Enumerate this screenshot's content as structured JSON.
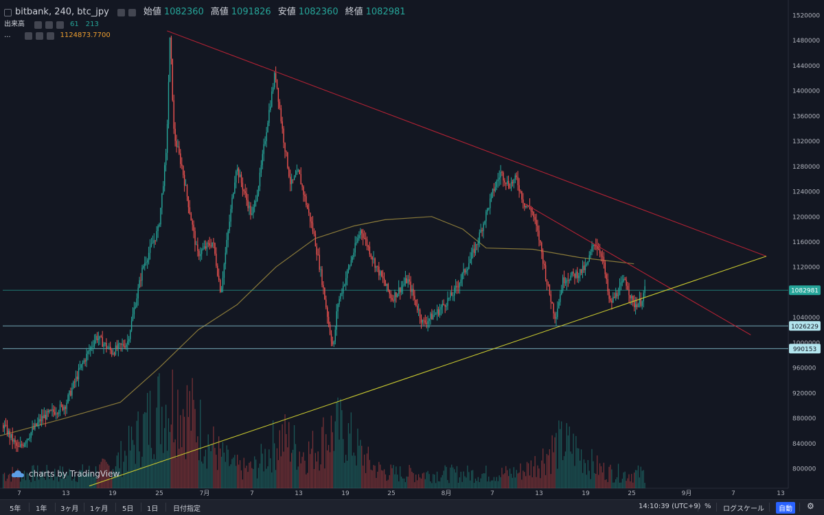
{
  "legend": {
    "symbol": "bitbank, 240, btc_jpy",
    "open_label": "始値",
    "open_value": "1082360",
    "high_label": "高値",
    "high_value": "1091826",
    "low_label": "安値",
    "low_value": "1082360",
    "close_label": "終値",
    "close_value": "1082981",
    "volume_label": "出来高",
    "volume_a": "61",
    "volume_b": "213",
    "ma_label": "...",
    "ma_value": "1124873.7700"
  },
  "watermark": "charts by TradingView",
  "bottom_bar": {
    "ranges": [
      "5年",
      "1年",
      "3ヶ月",
      "1ヶ月",
      "5日",
      "1日",
      "日付指定"
    ],
    "time": "14:10:39 (UTC+9)",
    "percent": "%",
    "log_scale": "ログスケール",
    "auto": "自動"
  },
  "colors": {
    "background": "#131722",
    "up": "#26a69a",
    "down": "#ef5350",
    "ma_line": "#8a7a3a",
    "resistance_line": "#b22234",
    "support_line": "#c8c830",
    "level_line": "#7fb8c8",
    "price_badge": "#26a69a",
    "level_badge": "#b3e5ee"
  },
  "chart_data": {
    "type": "candlestick",
    "y_ticks": [
      "1520000",
      "1480000",
      "1440000",
      "1400000",
      "1360000",
      "1320000",
      "1280000",
      "1240000",
      "1200000",
      "1160000",
      "1120000",
      "1080000",
      "1040000",
      "1000000",
      "960000",
      "920000",
      "880000",
      "840000",
      "800000"
    ],
    "x_ticks": [
      "7",
      "13",
      "19",
      "25",
      "7月",
      "7",
      "13",
      "19",
      "25",
      "8月",
      "7",
      "13",
      "19",
      "25",
      "9月",
      "7",
      "13"
    ],
    "ylim": [
      775000,
      1535000
    ],
    "price_keypoints": [
      [
        "6/1",
        850000
      ],
      [
        "6/3",
        845000
      ],
      [
        "6/5",
        870000
      ],
      [
        "6/7",
        830000
      ],
      [
        "6/10",
        880000
      ],
      [
        "6/13",
        900000
      ],
      [
        "6/15",
        960000
      ],
      [
        "6/17",
        1010000
      ],
      [
        "6/19",
        985000
      ],
      [
        "6/21",
        1000000
      ],
      [
        "6/23",
        1120000
      ],
      [
        "6/25",
        1180000
      ],
      [
        "6/26",
        1300000
      ],
      [
        "6/26 12h",
        1490000
      ],
      [
        "6/27",
        1330000
      ],
      [
        "6/28",
        1280000
      ],
      [
        "6/30",
        1140000
      ],
      [
        "7/2",
        1160000
      ],
      [
        "7/3",
        1080000
      ],
      [
        "7/5",
        1280000
      ],
      [
        "7/7",
        1200000
      ],
      [
        "7/8",
        1260000
      ],
      [
        "7/9",
        1350000
      ],
      [
        "7/10",
        1430000
      ],
      [
        "7/11",
        1330000
      ],
      [
        "7/12",
        1250000
      ],
      [
        "7/13",
        1270000
      ],
      [
        "7/15",
        1170000
      ],
      [
        "7/16",
        1100000
      ],
      [
        "7/17",
        1020000
      ],
      [
        "7/17 12h",
        990000
      ],
      [
        "7/18",
        1060000
      ],
      [
        "7/20",
        1140000
      ],
      [
        "7/21",
        1180000
      ],
      [
        "7/23",
        1120000
      ],
      [
        "7/25",
        1070000
      ],
      [
        "7/27",
        1100000
      ],
      [
        "7/29",
        1030000
      ],
      [
        "7/31",
        1050000
      ],
      [
        "8/2",
        1080000
      ],
      [
        "8/4",
        1130000
      ],
      [
        "8/5",
        1160000
      ],
      [
        "8/7",
        1240000
      ],
      [
        "8/8",
        1270000
      ],
      [
        "8/9",
        1250000
      ],
      [
        "8/10",
        1260000
      ],
      [
        "8/11",
        1220000
      ],
      [
        "8/12",
        1210000
      ],
      [
        "8/13",
        1160000
      ],
      [
        "8/14",
        1090000
      ],
      [
        "8/15",
        1040000
      ],
      [
        "8/16",
        1100000
      ],
      [
        "8/18",
        1110000
      ],
      [
        "8/19",
        1120000
      ],
      [
        "8/20",
        1160000
      ],
      [
        "8/21",
        1140000
      ],
      [
        "8/22",
        1060000
      ],
      [
        "8/23",
        1080000
      ],
      [
        "8/24",
        1100000
      ],
      [
        "8/25",
        1060000
      ],
      [
        "8/26",
        1065000
      ],
      [
        "8/26 12h",
        1082981
      ]
    ],
    "moving_average": [
      [
        "6/1",
        840000
      ],
      [
        "6/13",
        880000
      ],
      [
        "6/20",
        905000
      ],
      [
        "6/25",
        960000
      ],
      [
        "6/30",
        1020000
      ],
      [
        "7/5",
        1060000
      ],
      [
        "7/10",
        1120000
      ],
      [
        "7/15",
        1165000
      ],
      [
        "7/20",
        1185000
      ],
      [
        "7/24",
        1195000
      ],
      [
        "7/30",
        1200000
      ],
      [
        "8/3",
        1180000
      ],
      [
        "8/6",
        1150000
      ],
      [
        "8/12",
        1148000
      ],
      [
        "8/18",
        1135000
      ],
      [
        "8/25",
        1124874
      ]
    ],
    "trend_lines": [
      {
        "name": "resistance",
        "from": [
          "6/26",
          1495000
        ],
        "to": [
          "9/11",
          1137000
        ]
      },
      {
        "name": "resistance-short",
        "from": [
          "8/11",
          1220000
        ],
        "to": [
          "9/9",
          1012000
        ]
      },
      {
        "name": "support",
        "from": [
          "6/16",
          772000
        ],
        "to": [
          "9/11",
          1137000
        ]
      }
    ],
    "horizontal_levels": [
      {
        "value": 1082981,
        "label": "1082981",
        "kind": "last-price"
      },
      {
        "value": 1026229,
        "label": "1026229",
        "kind": "level"
      },
      {
        "value": 990153,
        "label": "990153",
        "kind": "level"
      }
    ],
    "volume_series": "bars along bottom, peaks near 6/26 and 7/17"
  }
}
